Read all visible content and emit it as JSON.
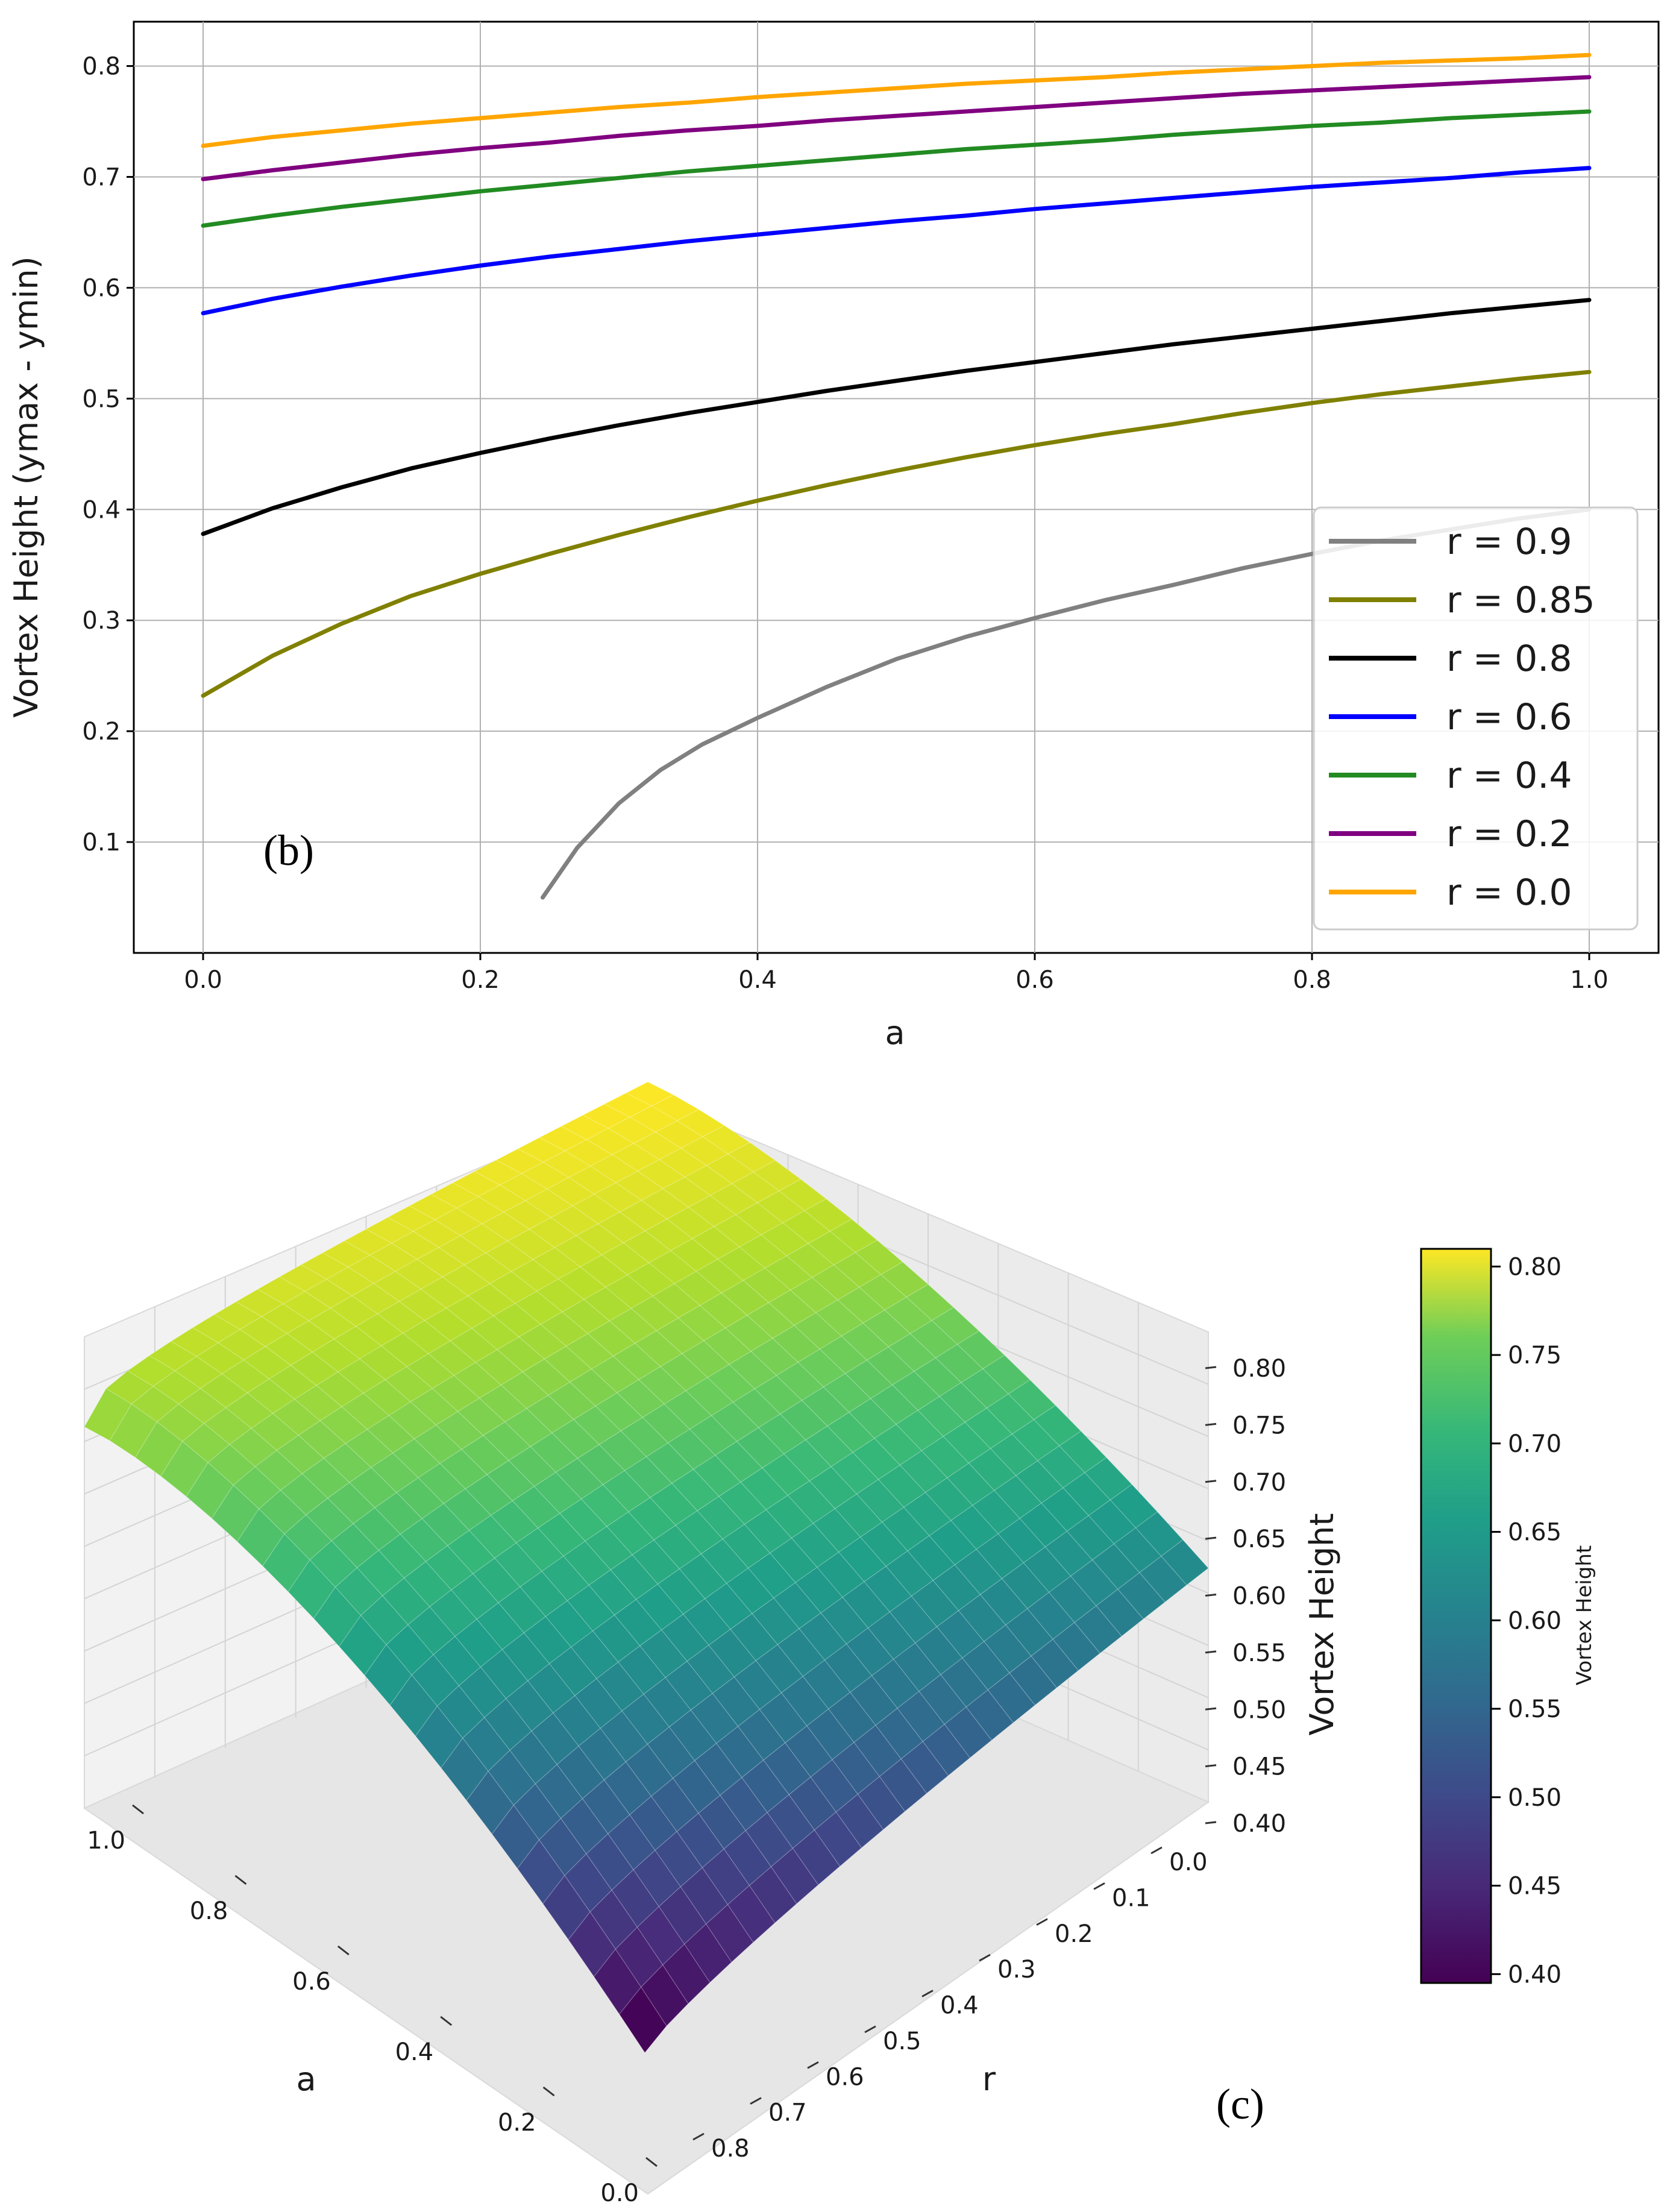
{
  "chart_data": [
    {
      "panel": "(b)",
      "type": "line",
      "title": "",
      "xlabel": "a",
      "ylabel": "Vortex Height (ymax - ymin)",
      "xlim": [
        -0.05,
        1.05
      ],
      "ylim": [
        0.0,
        0.84
      ],
      "xticks": [
        "0.0",
        "0.2",
        "0.4",
        "0.6",
        "0.8",
        "1.0"
      ],
      "yticks": [
        "0.1",
        "0.2",
        "0.3",
        "0.4",
        "0.5",
        "0.6",
        "0.7",
        "0.8"
      ],
      "grid": true,
      "legend_position": "lower-right",
      "series": [
        {
          "name": "r = 0.9",
          "color": "#808080",
          "x": [
            0.245,
            0.27,
            0.3,
            0.33,
            0.36,
            0.4,
            0.45,
            0.5,
            0.55,
            0.6,
            0.65,
            0.7,
            0.75,
            0.8,
            0.85,
            0.9,
            0.95,
            1.0
          ],
          "y": [
            0.05,
            0.095,
            0.135,
            0.165,
            0.188,
            0.212,
            0.24,
            0.265,
            0.285,
            0.302,
            0.318,
            0.332,
            0.347,
            0.36,
            0.372,
            0.382,
            0.392,
            0.4
          ]
        },
        {
          "name": "r = 0.85",
          "color": "#808000",
          "x": [
            0.0,
            0.05,
            0.1,
            0.15,
            0.2,
            0.25,
            0.3,
            0.35,
            0.4,
            0.45,
            0.5,
            0.55,
            0.6,
            0.65,
            0.7,
            0.75,
            0.8,
            0.85,
            0.9,
            0.95,
            1.0
          ],
          "y": [
            0.232,
            0.268,
            0.297,
            0.322,
            0.342,
            0.36,
            0.377,
            0.393,
            0.408,
            0.422,
            0.435,
            0.447,
            0.458,
            0.468,
            0.477,
            0.487,
            0.496,
            0.504,
            0.511,
            0.518,
            0.524
          ]
        },
        {
          "name": "r = 0.8",
          "color": "#000000",
          "x": [
            0.0,
            0.05,
            0.1,
            0.15,
            0.2,
            0.25,
            0.3,
            0.35,
            0.4,
            0.45,
            0.5,
            0.55,
            0.6,
            0.65,
            0.7,
            0.75,
            0.8,
            0.85,
            0.9,
            0.95,
            1.0
          ],
          "y": [
            0.378,
            0.401,
            0.42,
            0.437,
            0.451,
            0.464,
            0.476,
            0.487,
            0.497,
            0.507,
            0.516,
            0.525,
            0.533,
            0.541,
            0.549,
            0.556,
            0.563,
            0.57,
            0.577,
            0.583,
            0.589
          ]
        },
        {
          "name": "r = 0.6",
          "color": "#0000ff",
          "x": [
            0.0,
            0.05,
            0.1,
            0.15,
            0.2,
            0.25,
            0.3,
            0.35,
            0.4,
            0.45,
            0.5,
            0.55,
            0.6,
            0.65,
            0.7,
            0.75,
            0.8,
            0.85,
            0.9,
            0.95,
            1.0
          ],
          "y": [
            0.577,
            0.59,
            0.601,
            0.611,
            0.62,
            0.628,
            0.635,
            0.642,
            0.648,
            0.654,
            0.66,
            0.665,
            0.671,
            0.676,
            0.681,
            0.686,
            0.691,
            0.695,
            0.699,
            0.704,
            0.708
          ]
        },
        {
          "name": "r = 0.4",
          "color": "#228b22",
          "x": [
            0.0,
            0.05,
            0.1,
            0.15,
            0.2,
            0.25,
            0.3,
            0.35,
            0.4,
            0.45,
            0.5,
            0.55,
            0.6,
            0.65,
            0.7,
            0.75,
            0.8,
            0.85,
            0.9,
            0.95,
            1.0
          ],
          "y": [
            0.656,
            0.665,
            0.673,
            0.68,
            0.687,
            0.693,
            0.699,
            0.705,
            0.71,
            0.715,
            0.72,
            0.725,
            0.729,
            0.733,
            0.738,
            0.742,
            0.746,
            0.749,
            0.753,
            0.756,
            0.759
          ]
        },
        {
          "name": "r = 0.2",
          "color": "#800080",
          "x": [
            0.0,
            0.05,
            0.1,
            0.15,
            0.2,
            0.25,
            0.3,
            0.35,
            0.4,
            0.45,
            0.5,
            0.55,
            0.6,
            0.65,
            0.7,
            0.75,
            0.8,
            0.85,
            0.9,
            0.95,
            1.0
          ],
          "y": [
            0.698,
            0.706,
            0.713,
            0.72,
            0.726,
            0.731,
            0.737,
            0.742,
            0.746,
            0.751,
            0.755,
            0.759,
            0.763,
            0.767,
            0.771,
            0.775,
            0.778,
            0.781,
            0.784,
            0.787,
            0.79
          ]
        },
        {
          "name": "r = 0.0",
          "color": "#ffa500",
          "x": [
            0.0,
            0.05,
            0.1,
            0.15,
            0.2,
            0.25,
            0.3,
            0.35,
            0.4,
            0.45,
            0.5,
            0.55,
            0.6,
            0.65,
            0.7,
            0.75,
            0.8,
            0.85,
            0.9,
            0.95,
            1.0
          ],
          "y": [
            0.728,
            0.736,
            0.742,
            0.748,
            0.753,
            0.758,
            0.763,
            0.767,
            0.772,
            0.776,
            0.78,
            0.784,
            0.787,
            0.79,
            0.794,
            0.797,
            0.8,
            0.803,
            0.805,
            0.807,
            0.81
          ]
        }
      ]
    },
    {
      "panel": "(c)",
      "type": "surface3d",
      "title": "",
      "xlabel": "a",
      "ylabel": "r",
      "zlabel": "Vortex Height",
      "xlim": [
        0.0,
        1.0
      ],
      "ylim": [
        0.0,
        0.8
      ],
      "zlim": [
        0.37,
        0.81
      ],
      "xticks": [
        "0.0",
        "0.2",
        "0.4",
        "0.6",
        "0.8",
        "1.0"
      ],
      "yticks": [
        "0.0",
        "0.1",
        "0.2",
        "0.3",
        "0.4",
        "0.5",
        "0.6",
        "0.7",
        "0.8"
      ],
      "zticks": [
        "0.40",
        "0.45",
        "0.50",
        "0.55",
        "0.60",
        "0.65",
        "0.70",
        "0.75",
        "0.80"
      ],
      "corner_values": {
        "a0_r0": 0.728,
        "a1_r0": 0.81,
        "a0_r08": 0.378,
        "a1_r08": 0.589
      },
      "colormap": "viridis",
      "colorbar": {
        "label": "Vortex Height",
        "range": [
          0.395,
          0.81
        ],
        "ticks": [
          "0.40",
          "0.45",
          "0.50",
          "0.55",
          "0.60",
          "0.65",
          "0.70",
          "0.75",
          "0.80"
        ]
      }
    }
  ]
}
